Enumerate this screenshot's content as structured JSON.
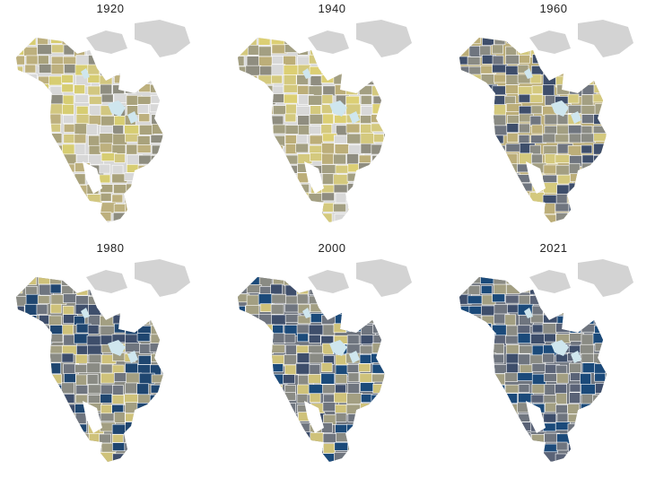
{
  "maps": [
    {
      "year": "1920",
      "palette": [
        "#d8d8d8",
        "#d7cd72",
        "#bdb07e",
        "#d2c780",
        "#8e8d80",
        "#a9a27c"
      ]
    },
    {
      "year": "1940",
      "palette": [
        "#d8d8d8",
        "#dccf74",
        "#bcae79",
        "#a39f82",
        "#d4c97e",
        "#8f8d80"
      ]
    },
    {
      "year": "1960",
      "palette": [
        "#bcae79",
        "#a39f82",
        "#8a8b84",
        "#d4c97e",
        "#6f757f",
        "#3e4e6b"
      ]
    },
    {
      "year": "1980",
      "palette": [
        "#8a8b84",
        "#6f757f",
        "#a39f82",
        "#cfc27a",
        "#3e4e6b",
        "#1f4670"
      ]
    },
    {
      "year": "2000",
      "palette": [
        "#6f757f",
        "#8a8b84",
        "#a39f82",
        "#cfc27a",
        "#3e4e6b",
        "#1b4a7a"
      ]
    },
    {
      "year": "2021",
      "palette": [
        "#6f757f",
        "#5a6377",
        "#8a8b84",
        "#a39f82",
        "#3e4e6b",
        "#1b4a7a"
      ]
    }
  ],
  "colors": {
    "no_data": "#d3d3d3",
    "water": "#cfe6ee",
    "lowest": "#dccf74",
    "highest": "#1b4a7a"
  }
}
